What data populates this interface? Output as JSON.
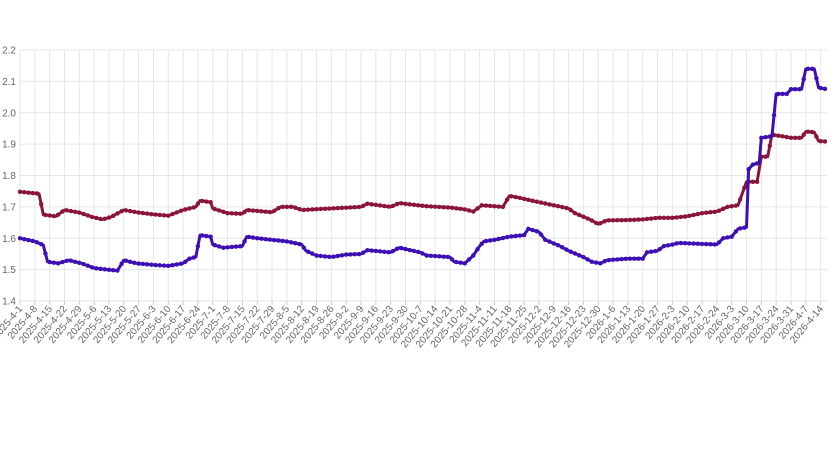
{
  "chart_data": {
    "type": "line",
    "title": "",
    "xlabel": "",
    "ylabel": "",
    "ylim": [
      1.4,
      2.2
    ],
    "yticks": [
      "1.4",
      "1.5",
      "1.6",
      "1.7",
      "1.8",
      "1.9",
      "2.0",
      "2.1",
      "2.2"
    ],
    "grid": true,
    "x_start": "2025-4-1",
    "x_end": "2026-4-17",
    "xtick_labels": [
      "2025-4-1",
      "2025-4-8",
      "2025-4-15",
      "2025-4-22",
      "2025-4-29",
      "2025-5-6",
      "2025-5-13",
      "2025-5-20",
      "2025-5-27",
      "2025-6-3",
      "2025-6-10",
      "2025-6-17",
      "2025-6-24",
      "2025-7-1",
      "2025-7-8",
      "2025-7-15",
      "2025-7-22",
      "2025-7-29",
      "2025-8-5",
      "2025-8-12",
      "2025-8-19",
      "2025-8-26",
      "2025-9-2",
      "2025-9-9",
      "2025-9-16",
      "2025-9-23",
      "2025-9-30",
      "2025-10-7",
      "2025-10-14",
      "2025-10-21",
      "2025-10-28",
      "2025-11-4",
      "2025-11-11",
      "2025-11-18",
      "2025-11-25",
      "2025-12-2",
      "2025-12-9",
      "2025-12-16",
      "2025-12-23",
      "2025-12-30",
      "2026-1-6",
      "2026-1-13",
      "2026-1-20",
      "2026-1-27",
      "2026-2-3",
      "2026-2-10",
      "2026-2-17",
      "2026-2-24",
      "2026-3-3",
      "2026-3-10",
      "2026-3-17",
      "2026-3-24",
      "2026-3-31",
      "2026-4-7",
      "2026-4-14"
    ],
    "series": [
      {
        "color": "#8b1538",
        "points": [
          [
            "2025-4-1",
            1.748
          ],
          [
            "2025-4-10",
            1.742
          ],
          [
            "2025-4-12",
            1.675
          ],
          [
            "2025-4-18",
            1.67
          ],
          [
            "2025-4-22",
            1.69
          ],
          [
            "2025-4-29",
            1.682
          ],
          [
            "2025-5-5",
            1.668
          ],
          [
            "2025-5-10",
            1.66
          ],
          [
            "2025-5-14",
            1.668
          ],
          [
            "2025-5-20",
            1.69
          ],
          [
            "2025-5-27",
            1.682
          ],
          [
            "2025-6-3",
            1.676
          ],
          [
            "2025-6-10",
            1.672
          ],
          [
            "2025-6-17",
            1.69
          ],
          [
            "2025-6-23",
            1.7
          ],
          [
            "2025-6-25",
            1.72
          ],
          [
            "2025-6-30",
            1.715
          ],
          [
            "2025-7-1",
            1.695
          ],
          [
            "2025-7-8",
            1.68
          ],
          [
            "2025-7-15",
            1.678
          ],
          [
            "2025-7-17",
            1.69
          ],
          [
            "2025-7-29",
            1.683
          ],
          [
            "2025-8-2",
            1.7
          ],
          [
            "2025-8-8",
            1.7
          ],
          [
            "2025-8-12",
            1.69
          ],
          [
            "2025-8-26",
            1.695
          ],
          [
            "2025-9-9",
            1.7
          ],
          [
            "2025-9-12",
            1.71
          ],
          [
            "2025-9-23",
            1.7
          ],
          [
            "2025-9-27",
            1.712
          ],
          [
            "2025-10-10",
            1.702
          ],
          [
            "2025-10-21",
            1.698
          ],
          [
            "2025-10-28",
            1.692
          ],
          [
            "2025-11-1",
            1.685
          ],
          [
            "2025-11-5",
            1.705
          ],
          [
            "2025-11-15",
            1.7
          ],
          [
            "2025-11-18",
            1.735
          ],
          [
            "2025-11-22",
            1.73
          ],
          [
            "2025-12-2",
            1.715
          ],
          [
            "2025-12-9",
            1.705
          ],
          [
            "2025-12-16",
            1.695
          ],
          [
            "2025-12-19",
            1.68
          ],
          [
            "2025-12-26",
            1.66
          ],
          [
            "2025-12-30",
            1.645
          ],
          [
            "2026-1-3",
            1.657
          ],
          [
            "2026-1-13",
            1.658
          ],
          [
            "2026-1-20",
            1.66
          ],
          [
            "2026-1-27",
            1.665
          ],
          [
            "2026-2-3",
            1.665
          ],
          [
            "2026-2-10",
            1.67
          ],
          [
            "2026-2-17",
            1.68
          ],
          [
            "2026-2-24",
            1.685
          ],
          [
            "2026-3-1",
            1.7
          ],
          [
            "2026-3-6",
            1.705
          ],
          [
            "2026-3-10",
            1.78
          ],
          [
            "2026-3-15",
            1.78
          ],
          [
            "2026-3-17",
            1.86
          ],
          [
            "2026-3-20",
            1.86
          ],
          [
            "2026-3-22",
            1.93
          ],
          [
            "2026-3-27",
            1.925
          ],
          [
            "2026-3-31",
            1.92
          ],
          [
            "2026-4-5",
            1.92
          ],
          [
            "2026-4-7",
            1.94
          ],
          [
            "2026-4-11",
            1.938
          ],
          [
            "2026-4-13",
            1.91
          ],
          [
            "2026-4-17",
            1.908
          ]
        ]
      },
      {
        "color": "#3d0fb5",
        "points": [
          [
            "2025-4-1",
            1.6
          ],
          [
            "2025-4-8",
            1.59
          ],
          [
            "2025-4-12",
            1.578
          ],
          [
            "2025-4-14",
            1.525
          ],
          [
            "2025-4-19",
            1.52
          ],
          [
            "2025-4-24",
            1.53
          ],
          [
            "2025-4-30",
            1.52
          ],
          [
            "2025-5-6",
            1.505
          ],
          [
            "2025-5-12",
            1.5
          ],
          [
            "2025-5-17",
            1.497
          ],
          [
            "2025-5-20",
            1.53
          ],
          [
            "2025-5-26",
            1.52
          ],
          [
            "2025-6-3",
            1.515
          ],
          [
            "2025-6-10",
            1.512
          ],
          [
            "2025-6-17",
            1.52
          ],
          [
            "2025-6-20",
            1.535
          ],
          [
            "2025-6-23",
            1.54
          ],
          [
            "2025-6-25",
            1.61
          ],
          [
            "2025-6-30",
            1.605
          ],
          [
            "2025-7-1",
            1.58
          ],
          [
            "2025-7-6",
            1.57
          ],
          [
            "2025-7-15",
            1.575
          ],
          [
            "2025-7-17",
            1.605
          ],
          [
            "2025-7-22",
            1.6
          ],
          [
            "2025-7-29",
            1.595
          ],
          [
            "2025-8-5",
            1.59
          ],
          [
            "2025-8-12",
            1.58
          ],
          [
            "2025-8-14",
            1.56
          ],
          [
            "2025-8-19",
            1.545
          ],
          [
            "2025-8-26",
            1.54
          ],
          [
            "2025-9-2",
            1.548
          ],
          [
            "2025-9-9",
            1.55
          ],
          [
            "2025-9-12",
            1.562
          ],
          [
            "2025-9-23",
            1.555
          ],
          [
            "2025-9-27",
            1.57
          ],
          [
            "2025-10-7",
            1.555
          ],
          [
            "2025-10-10",
            1.545
          ],
          [
            "2025-10-21",
            1.54
          ],
          [
            "2025-10-23",
            1.525
          ],
          [
            "2025-10-28",
            1.52
          ],
          [
            "2025-11-1",
            1.545
          ],
          [
            "2025-11-4",
            1.575
          ],
          [
            "2025-11-6",
            1.59
          ],
          [
            "2025-11-11",
            1.595
          ],
          [
            "2025-11-18",
            1.605
          ],
          [
            "2025-11-25",
            1.61
          ],
          [
            "2025-11-27",
            1.63
          ],
          [
            "2025-12-2",
            1.62
          ],
          [
            "2025-12-5",
            1.595
          ],
          [
            "2025-12-12",
            1.575
          ],
          [
            "2025-12-16",
            1.56
          ],
          [
            "2025-12-23",
            1.54
          ],
          [
            "2025-12-27",
            1.525
          ],
          [
            "2025-12-31",
            1.52
          ],
          [
            "2026-1-3",
            1.53
          ],
          [
            "2026-1-13",
            1.535
          ],
          [
            "2026-1-20",
            1.535
          ],
          [
            "2026-1-22",
            1.555
          ],
          [
            "2026-1-27",
            1.56
          ],
          [
            "2026-1-30",
            1.575
          ],
          [
            "2026-2-3",
            1.58
          ],
          [
            "2026-2-6",
            1.585
          ],
          [
            "2026-2-24",
            1.58
          ],
          [
            "2026-2-27",
            1.6
          ],
          [
            "2026-3-3",
            1.605
          ],
          [
            "2026-3-6",
            1.63
          ],
          [
            "2026-3-10",
            1.635
          ],
          [
            "2026-3-11",
            1.82
          ],
          [
            "2026-3-13",
            1.835
          ],
          [
            "2026-3-16",
            1.84
          ],
          [
            "2026-3-17",
            1.92
          ],
          [
            "2026-3-22",
            1.925
          ],
          [
            "2026-3-24",
            2.06
          ],
          [
            "2026-3-29",
            2.06
          ],
          [
            "2026-3-31",
            2.075
          ],
          [
            "2026-4-5",
            2.075
          ],
          [
            "2026-4-7",
            2.14
          ],
          [
            "2026-4-11",
            2.14
          ],
          [
            "2026-4-13",
            2.08
          ],
          [
            "2026-4-17",
            2.075
          ]
        ]
      }
    ]
  }
}
